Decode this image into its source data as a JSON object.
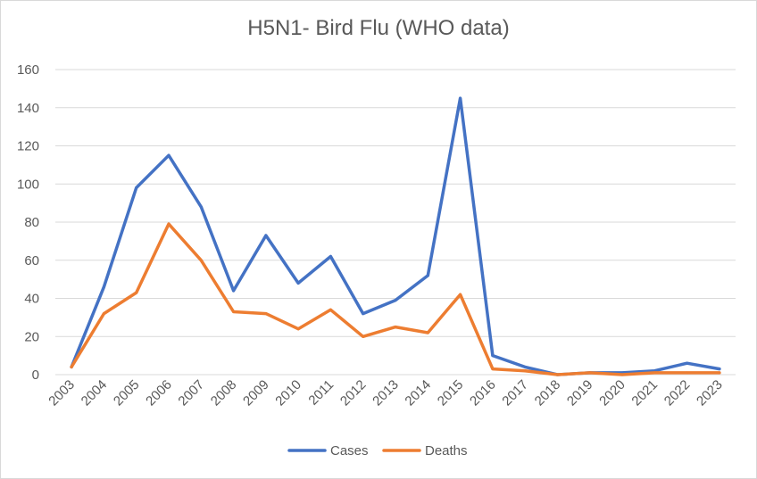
{
  "chart_data": {
    "type": "line",
    "title": "H5N1- Bird Flu (WHO data)",
    "xlabel": "",
    "ylabel": "",
    "categories": [
      "2003",
      "2004",
      "2005",
      "2006",
      "2007",
      "2008",
      "2009",
      "2010",
      "2011",
      "2012",
      "2013",
      "2014",
      "2015",
      "2016",
      "2017",
      "2018",
      "2019",
      "2020",
      "2021",
      "2022",
      "2023"
    ],
    "series": [
      {
        "name": "Cases",
        "color": "#4472c4",
        "values": [
          4,
          46,
          98,
          115,
          88,
          44,
          73,
          48,
          62,
          32,
          39,
          52,
          145,
          10,
          4,
          0,
          1,
          1,
          2,
          6,
          3
        ]
      },
      {
        "name": "Deaths",
        "color": "#ed7d31",
        "values": [
          4,
          32,
          43,
          79,
          60,
          33,
          32,
          24,
          34,
          20,
          25,
          22,
          42,
          3,
          2,
          0,
          1,
          0,
          1,
          1,
          1
        ]
      }
    ],
    "ylim": [
      0,
      160
    ],
    "yticks": [
      0,
      20,
      40,
      60,
      80,
      100,
      120,
      140,
      160
    ],
    "grid": "horizontal",
    "legend_position": "bottom"
  }
}
